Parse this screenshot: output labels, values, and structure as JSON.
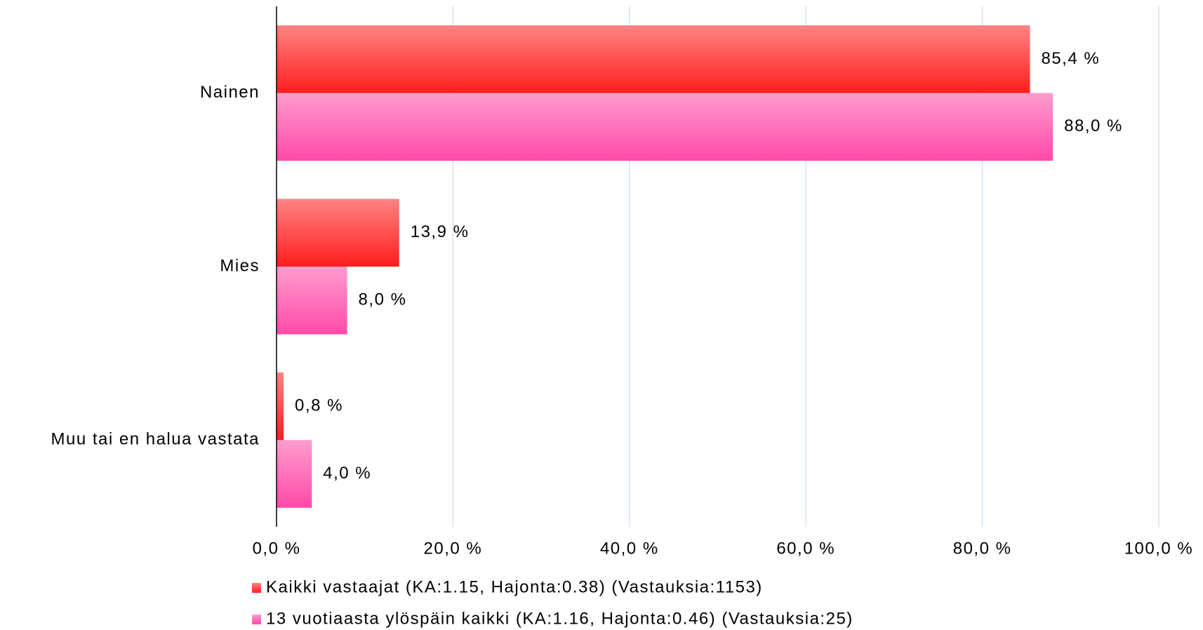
{
  "chart_data": {
    "type": "hbar",
    "categories": [
      "Nainen",
      "Mies",
      "Muu tai en halua vastata"
    ],
    "series": [
      {
        "name": "Kaikki vastaajat (KA:1.15, Hajonta:0.38) (Vastauksia:1153)",
        "color": "#ff1e1e",
        "values": [
          85.4,
          13.9,
          0.8
        ],
        "value_labels": [
          "85,4 %",
          "13,9 %",
          "0,8 %"
        ]
      },
      {
        "name": "13 vuotiaasta ylöspäin kaikki (KA:1.16, Hajonta:0.46) (Vastauksia:25)",
        "color": "#ff4aa8",
        "values": [
          88.0,
          8.0,
          4.0
        ],
        "value_labels": [
          "88,0 %",
          "8,0 %",
          "4,0 %"
        ]
      }
    ],
    "xlim": [
      0,
      100
    ],
    "xticks": [
      {
        "value": 0,
        "label": "0,0 %"
      },
      {
        "value": 20,
        "label": "20,0 %"
      },
      {
        "value": 40,
        "label": "40,0 %"
      },
      {
        "value": 60,
        "label": "60,0 %"
      },
      {
        "value": 80,
        "label": "80,0 %"
      },
      {
        "value": 100,
        "label": "100,0 %"
      }
    ],
    "grid": true,
    "legend": "bottom"
  }
}
